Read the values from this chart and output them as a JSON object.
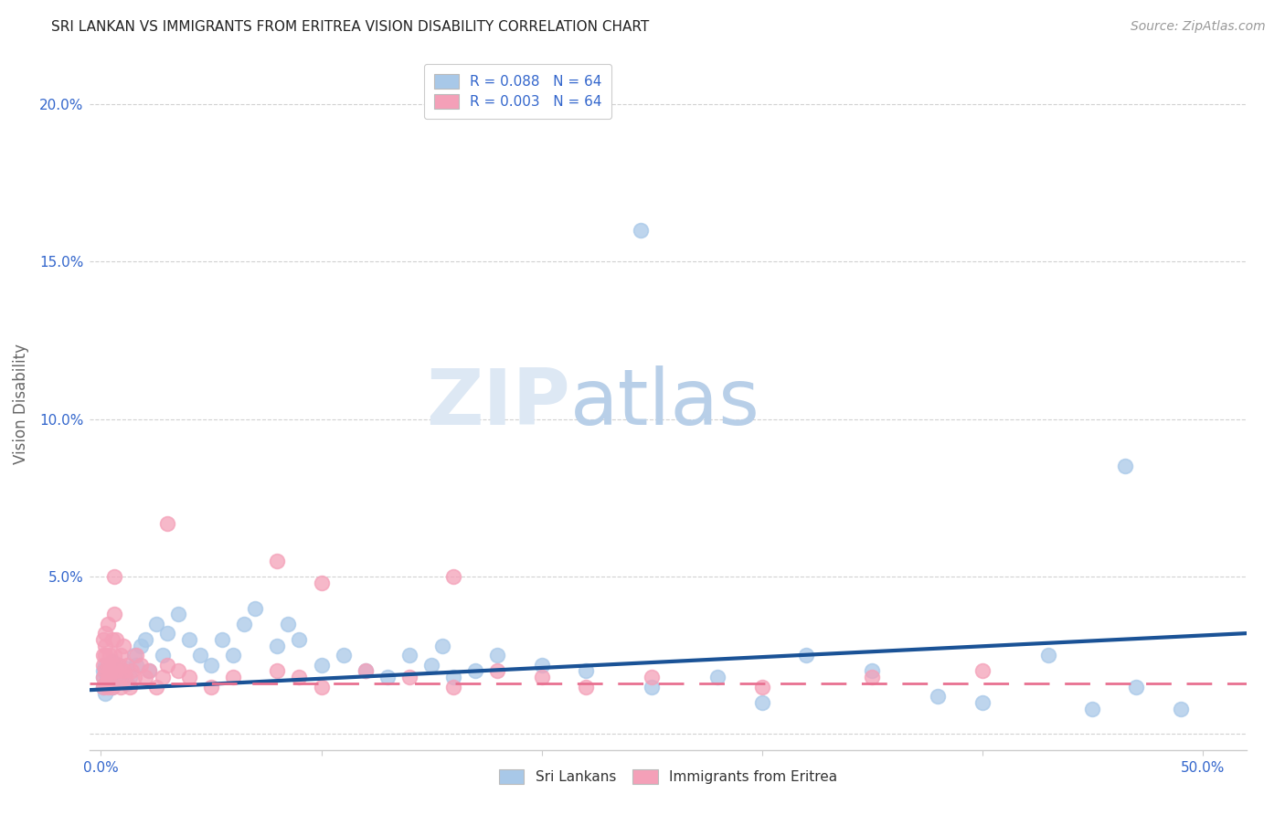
{
  "title": "SRI LANKAN VS IMMIGRANTS FROM ERITREA VISION DISABILITY CORRELATION CHART",
  "source": "Source: ZipAtlas.com",
  "ylabel": "Vision Disability",
  "xlim": [
    -0.005,
    0.52
  ],
  "ylim": [
    -0.005,
    0.215
  ],
  "xticks": [
    0.0,
    0.1,
    0.2,
    0.3,
    0.4,
    0.5
  ],
  "xticklabels": [
    "0.0%",
    "",
    "",
    "",
    "",
    "50.0%"
  ],
  "yticks": [
    0.0,
    0.05,
    0.1,
    0.15,
    0.2
  ],
  "yticklabels": [
    "",
    "5.0%",
    "10.0%",
    "15.0%",
    "20.0%"
  ],
  "sri_lankan_color": "#a8c8e8",
  "eritrea_color": "#f4a0b8",
  "sri_lankan_line_color": "#1a5296",
  "eritrea_line_color": "#e87090",
  "legend_blue_color": "#a8c8e8",
  "legend_pink_color": "#f4a0b8",
  "legend_text_color": "#3366cc",
  "R_sri": 0.088,
  "N_sri": 64,
  "R_eri": 0.003,
  "N_eri": 64,
  "background_color": "#ffffff",
  "grid_color": "#cccccc",
  "watermark_zip": "ZIP",
  "watermark_atlas": "atlas",
  "title_fontsize": 11,
  "source_fontsize": 10,
  "tick_fontsize": 11,
  "ylabel_fontsize": 12,
  "sri_line_y0": 0.014,
  "sri_line_y1": 0.032,
  "eri_line_y0": 0.016,
  "eri_line_y1": 0.016,
  "sri_x": [
    0.001,
    0.001,
    0.001,
    0.002,
    0.002,
    0.002,
    0.003,
    0.003,
    0.004,
    0.004,
    0.005,
    0.005,
    0.006,
    0.007,
    0.008,
    0.009,
    0.01,
    0.011,
    0.012,
    0.013,
    0.015,
    0.016,
    0.018,
    0.02,
    0.022,
    0.025,
    0.028,
    0.03,
    0.035,
    0.04,
    0.045,
    0.05,
    0.055,
    0.06,
    0.065,
    0.07,
    0.08,
    0.085,
    0.09,
    0.1,
    0.11,
    0.12,
    0.13,
    0.14,
    0.15,
    0.155,
    0.16,
    0.17,
    0.18,
    0.2,
    0.22,
    0.25,
    0.28,
    0.3,
    0.32,
    0.35,
    0.38,
    0.4,
    0.43,
    0.45,
    0.47,
    0.49,
    0.245,
    0.465
  ],
  "sri_y": [
    0.02,
    0.018,
    0.015,
    0.022,
    0.016,
    0.013,
    0.018,
    0.021,
    0.017,
    0.019,
    0.023,
    0.015,
    0.02,
    0.018,
    0.022,
    0.019,
    0.017,
    0.021,
    0.016,
    0.018,
    0.025,
    0.022,
    0.028,
    0.03,
    0.02,
    0.035,
    0.025,
    0.032,
    0.038,
    0.03,
    0.025,
    0.022,
    0.03,
    0.025,
    0.035,
    0.04,
    0.028,
    0.035,
    0.03,
    0.022,
    0.025,
    0.02,
    0.018,
    0.025,
    0.022,
    0.028,
    0.018,
    0.02,
    0.025,
    0.022,
    0.02,
    0.015,
    0.018,
    0.01,
    0.025,
    0.02,
    0.012,
    0.01,
    0.025,
    0.008,
    0.015,
    0.008,
    0.16,
    0.085
  ],
  "eri_x": [
    0.001,
    0.001,
    0.001,
    0.001,
    0.001,
    0.002,
    0.002,
    0.002,
    0.002,
    0.002,
    0.003,
    0.003,
    0.003,
    0.003,
    0.004,
    0.004,
    0.004,
    0.005,
    0.005,
    0.005,
    0.006,
    0.006,
    0.006,
    0.007,
    0.007,
    0.008,
    0.008,
    0.009,
    0.009,
    0.01,
    0.01,
    0.011,
    0.012,
    0.013,
    0.014,
    0.015,
    0.016,
    0.018,
    0.02,
    0.022,
    0.025,
    0.028,
    0.03,
    0.035,
    0.04,
    0.05,
    0.06,
    0.08,
    0.09,
    0.1,
    0.12,
    0.14,
    0.16,
    0.18,
    0.2,
    0.22,
    0.25,
    0.3,
    0.35,
    0.4,
    0.03,
    0.08,
    0.1,
    0.16
  ],
  "eri_y": [
    0.022,
    0.018,
    0.015,
    0.025,
    0.03,
    0.02,
    0.016,
    0.028,
    0.032,
    0.025,
    0.018,
    0.022,
    0.035,
    0.015,
    0.025,
    0.02,
    0.018,
    0.03,
    0.022,
    0.015,
    0.038,
    0.05,
    0.025,
    0.02,
    0.03,
    0.018,
    0.022,
    0.025,
    0.015,
    0.02,
    0.028,
    0.018,
    0.022,
    0.015,
    0.02,
    0.018,
    0.025,
    0.022,
    0.018,
    0.02,
    0.015,
    0.018,
    0.022,
    0.02,
    0.018,
    0.015,
    0.018,
    0.02,
    0.018,
    0.015,
    0.02,
    0.018,
    0.015,
    0.02,
    0.018,
    0.015,
    0.018,
    0.015,
    0.018,
    0.02,
    0.067,
    0.055,
    0.048,
    0.05
  ]
}
